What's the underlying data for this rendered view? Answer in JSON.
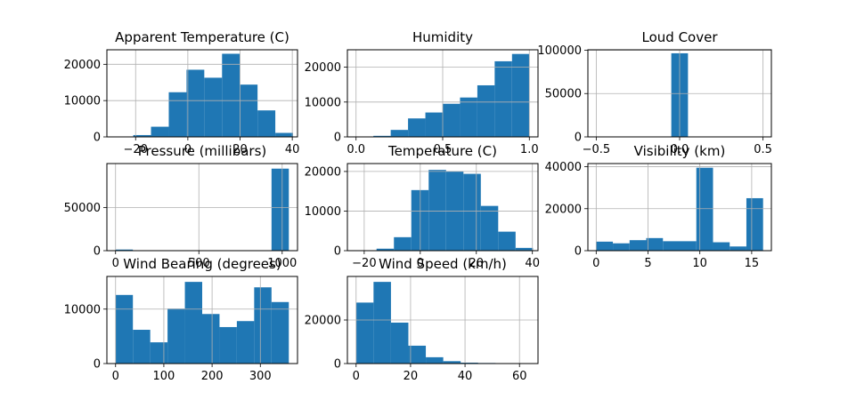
{
  "chart_data": [
    {
      "type": "bar",
      "title": "Apparent Temperature (C)",
      "xlim": [
        -31,
        42
      ],
      "ylim": [
        0,
        24000
      ],
      "x_ticks": [
        -20,
        0,
        20,
        40
      ],
      "x_tick_labels": [
        "−20",
        "0",
        "20",
        "40"
      ],
      "y_ticks": [
        0,
        10000,
        20000
      ],
      "y_tick_labels": [
        "0",
        "10000",
        "20000"
      ],
      "grid": true,
      "bins": [
        {
          "x0": -27.7,
          "x1": -20.9,
          "count": 100
        },
        {
          "x0": -20.9,
          "x1": -14.1,
          "count": 500
        },
        {
          "x0": -14.1,
          "x1": -7.3,
          "count": 2800
        },
        {
          "x0": -7.3,
          "x1": -0.5,
          "count": 12300
        },
        {
          "x0": -0.5,
          "x1": 6.3,
          "count": 18500
        },
        {
          "x0": 6.3,
          "x1": 13.1,
          "count": 16300
        },
        {
          "x0": 13.1,
          "x1": 19.9,
          "count": 22900
        },
        {
          "x0": 19.9,
          "x1": 26.7,
          "count": 14400
        },
        {
          "x0": 26.7,
          "x1": 33.5,
          "count": 7300
        },
        {
          "x0": 33.5,
          "x1": 40.3,
          "count": 1100
        }
      ]
    },
    {
      "type": "bar",
      "title": "Humidity",
      "xlim": [
        -0.05,
        1.05
      ],
      "ylim": [
        0,
        25000
      ],
      "x_ticks": [
        0.0,
        0.5,
        1.0
      ],
      "x_tick_labels": [
        "0.0",
        "0.5",
        "1.0"
      ],
      "y_ticks": [
        0,
        10000,
        20000
      ],
      "y_tick_labels": [
        "0",
        "10000",
        "20000"
      ],
      "grid": true,
      "bins": [
        {
          "x0": 0.0,
          "x1": 0.1,
          "count": 20
        },
        {
          "x0": 0.1,
          "x1": 0.2,
          "count": 300
        },
        {
          "x0": 0.2,
          "x1": 0.3,
          "count": 2000
        },
        {
          "x0": 0.3,
          "x1": 0.4,
          "count": 5300
        },
        {
          "x0": 0.4,
          "x1": 0.5,
          "count": 7000
        },
        {
          "x0": 0.5,
          "x1": 0.6,
          "count": 9500
        },
        {
          "x0": 0.6,
          "x1": 0.7,
          "count": 11300
        },
        {
          "x0": 0.7,
          "x1": 0.8,
          "count": 14800
        },
        {
          "x0": 0.8,
          "x1": 0.9,
          "count": 21700
        },
        {
          "x0": 0.9,
          "x1": 1.0,
          "count": 23800
        }
      ]
    },
    {
      "type": "bar",
      "title": "Loud Cover",
      "xlim": [
        -0.55,
        0.55
      ],
      "ylim": [
        0,
        100500
      ],
      "x_ticks": [
        -0.5,
        0.0,
        0.5
      ],
      "x_tick_labels": [
        "−0.5",
        "0.0",
        "0.5"
      ],
      "y_ticks": [
        0,
        50000,
        100000
      ],
      "y_tick_labels": [
        "0",
        "50000",
        "100000"
      ],
      "grid": true,
      "bins": [
        {
          "x0": -0.05,
          "x1": 0.05,
          "count": 96453
        }
      ]
    },
    {
      "type": "bar",
      "title": "Pressure (millibars)",
      "xlim": [
        -52,
        1092
      ],
      "ylim": [
        0,
        101000
      ],
      "x_ticks": [
        0,
        500,
        1000
      ],
      "x_tick_labels": [
        "0",
        "500",
        "1000"
      ],
      "y_ticks": [
        0,
        50000
      ],
      "y_tick_labels": [
        "0",
        "50000"
      ],
      "grid": true,
      "bins": [
        {
          "x0": 0,
          "x1": 104,
          "count": 1300
        },
        {
          "x0": 936,
          "x1": 1040,
          "count": 95100
        }
      ]
    },
    {
      "type": "bar",
      "title": "Temperature (C)",
      "xlim": [
        -26,
        42
      ],
      "ylim": [
        0,
        22000
      ],
      "x_ticks": [
        -20,
        0,
        20,
        40
      ],
      "x_tick_labels": [
        "−20",
        "0",
        "20",
        "40"
      ],
      "y_ticks": [
        0,
        10000,
        20000
      ],
      "y_tick_labels": [
        "0",
        "10000",
        "20000"
      ],
      "grid": true,
      "bins": [
        {
          "x0": -21.8,
          "x1": -15.6,
          "count": 50
        },
        {
          "x0": -15.6,
          "x1": -9.4,
          "count": 500
        },
        {
          "x0": -9.4,
          "x1": -3.2,
          "count": 3400
        },
        {
          "x0": -3.2,
          "x1": 3.0,
          "count": 15300
        },
        {
          "x0": 3.0,
          "x1": 9.2,
          "count": 20400
        },
        {
          "x0": 9.2,
          "x1": 15.4,
          "count": 20100
        },
        {
          "x0": 15.4,
          "x1": 21.6,
          "count": 19400
        },
        {
          "x0": 21.6,
          "x1": 27.8,
          "count": 11300
        },
        {
          "x0": 27.8,
          "x1": 34.0,
          "count": 4800
        },
        {
          "x0": 34.0,
          "x1": 40.2,
          "count": 700
        }
      ]
    },
    {
      "type": "bar",
      "title": "Visibility (km)",
      "xlim": [
        -0.8,
        16.9
      ],
      "ylim": [
        0,
        41500
      ],
      "x_ticks": [
        0,
        5,
        10,
        15
      ],
      "x_tick_labels": [
        "0",
        "5",
        "10",
        "15"
      ],
      "y_ticks": [
        0,
        20000,
        40000
      ],
      "y_tick_labels": [
        "0",
        "20000",
        "40000"
      ],
      "grid": true,
      "bins": [
        {
          "x0": 0.0,
          "x1": 1.61,
          "count": 4300
        },
        {
          "x0": 1.61,
          "x1": 3.22,
          "count": 3500
        },
        {
          "x0": 3.22,
          "x1": 4.83,
          "count": 5000
        },
        {
          "x0": 4.83,
          "x1": 6.44,
          "count": 6000
        },
        {
          "x0": 6.44,
          "x1": 8.05,
          "count": 4500
        },
        {
          "x0": 8.05,
          "x1": 9.66,
          "count": 4500
        },
        {
          "x0": 9.66,
          "x1": 11.27,
          "count": 39500
        },
        {
          "x0": 11.27,
          "x1": 12.88,
          "count": 4000
        },
        {
          "x0": 12.88,
          "x1": 14.49,
          "count": 2000
        },
        {
          "x0": 14.49,
          "x1": 16.1,
          "count": 25000
        }
      ]
    },
    {
      "type": "bar",
      "title": "Wind Bearing (degrees)",
      "xlim": [
        -18,
        377
      ],
      "ylim": [
        0,
        16000
      ],
      "x_ticks": [
        0,
        100,
        200,
        300
      ],
      "x_tick_labels": [
        "0",
        "100",
        "200",
        "300"
      ],
      "y_ticks": [
        0,
        10000
      ],
      "y_tick_labels": [
        "0",
        "10000"
      ],
      "grid": true,
      "bins": [
        {
          "x0": 0,
          "x1": 35.9,
          "count": 12600
        },
        {
          "x0": 35.9,
          "x1": 71.8,
          "count": 6200
        },
        {
          "x0": 71.8,
          "x1": 107.7,
          "count": 3900
        },
        {
          "x0": 107.7,
          "x1": 143.6,
          "count": 10100
        },
        {
          "x0": 143.6,
          "x1": 179.5,
          "count": 15000
        },
        {
          "x0": 179.5,
          "x1": 215.4,
          "count": 9100
        },
        {
          "x0": 215.4,
          "x1": 251.3,
          "count": 6700
        },
        {
          "x0": 251.3,
          "x1": 287.2,
          "count": 7800
        },
        {
          "x0": 287.2,
          "x1": 323.1,
          "count": 14000
        },
        {
          "x0": 323.1,
          "x1": 359.0,
          "count": 11300
        }
      ]
    },
    {
      "type": "bar",
      "title": "Wind Speed (km/h)",
      "xlim": [
        -3.2,
        66.8
      ],
      "ylim": [
        0,
        40000
      ],
      "x_ticks": [
        0,
        20,
        40,
        60
      ],
      "x_tick_labels": [
        "0",
        "20",
        "40",
        "60"
      ],
      "y_ticks": [
        0,
        20000
      ],
      "y_tick_labels": [
        "0",
        "20000"
      ],
      "grid": true,
      "bins": [
        {
          "x0": 0.0,
          "x1": 6.4,
          "count": 28000
        },
        {
          "x0": 6.4,
          "x1": 12.8,
          "count": 37500
        },
        {
          "x0": 12.8,
          "x1": 19.2,
          "count": 18800
        },
        {
          "x0": 19.2,
          "x1": 25.6,
          "count": 8200
        },
        {
          "x0": 25.6,
          "x1": 32.0,
          "count": 2900
        },
        {
          "x0": 32.0,
          "x1": 38.4,
          "count": 1100
        },
        {
          "x0": 38.4,
          "x1": 44.8,
          "count": 400
        },
        {
          "x0": 44.8,
          "x1": 51.2,
          "count": 250
        },
        {
          "x0": 51.2,
          "x1": 57.6,
          "count": 100
        },
        {
          "x0": 57.6,
          "x1": 64.0,
          "count": 20
        }
      ]
    }
  ]
}
